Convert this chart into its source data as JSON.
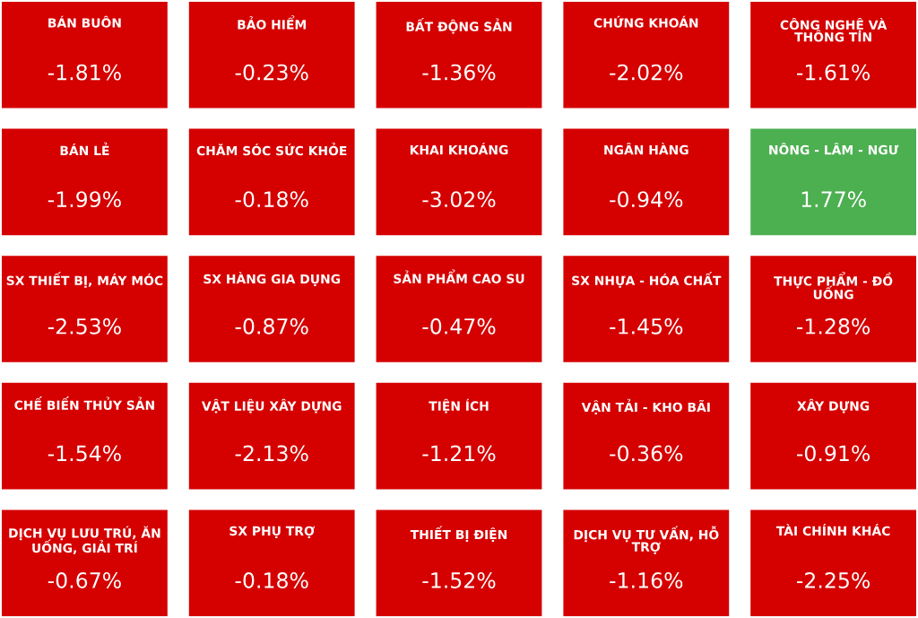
{
  "chart_data": {
    "type": "other",
    "categories": [
      "BÁN BUÔN",
      "BẢO HIỂM",
      "BẤT ĐỘNG SẢN",
      "CHỨNG KHOÁN",
      "CÔNG NGHỆ VÀ THÔNG TIN",
      "BÁN LẺ",
      "CHĂM SÓC SỨC KHỎE",
      "KHAI KHOÁNG",
      "NGÂN HÀNG",
      "NÔNG - LÂM - NGƯ",
      "SX THIẾT BỊ, MÁY MÓC",
      "SX HÀNG GIA DỤNG",
      "SẢN PHẨM CAO SU",
      "SX NHỰA - HÓA CHẤT",
      "THỰC PHẨM - ĐỒ UỐNG",
      "CHẾ BIẾN THỦY SẢN",
      "VẬT LIỆU XÂY DỰNG",
      "TIỆN ÍCH",
      "VẬN TẢI - KHO BÃI",
      "XÂY DỰNG",
      "DỊCH VỤ LƯU TRÚ, ĂN UỐNG, GIẢI TRÍ",
      "SX PHỤ TRỢ",
      "THIẾT BỊ ĐIỆN",
      "DỊCH VỤ TƯ VẤN, HỖ TRỢ",
      "TÀI CHÍNH KHÁC"
    ],
    "values": [
      -1.81,
      -0.23,
      -1.36,
      -2.02,
      -1.61,
      -1.99,
      -0.18,
      -3.02,
      -0.94,
      1.77,
      -2.53,
      -0.87,
      -0.47,
      -1.45,
      -1.28,
      -1.54,
      -2.13,
      -1.21,
      -0.36,
      -0.91,
      -0.67,
      -0.18,
      -1.52,
      -1.16,
      -2.25
    ],
    "value_labels": [
      "-1.81%",
      "-0.23%",
      "-1.36%",
      "-2.02%",
      "-1.61%",
      "-1.99%",
      "-0.18%",
      "-3.02%",
      "-0.94%",
      "1.77%",
      "-2.53%",
      "-0.87%",
      "-0.47%",
      "-1.45%",
      "-1.28%",
      "-1.54%",
      "-2.13%",
      "-1.21%",
      "-0.36%",
      "-0.91%",
      "-0.67%",
      "-0.18%",
      "-1.52%",
      "-1.16%",
      "-2.25%"
    ],
    "colors": [
      "#d50000",
      "#d50000",
      "#d50000",
      "#d50000",
      "#d50000",
      "#d50000",
      "#d50000",
      "#d50000",
      "#d50000",
      "#4caf50",
      "#d50000",
      "#d50000",
      "#d50000",
      "#d50000",
      "#d50000",
      "#d50000",
      "#d50000",
      "#d50000",
      "#d50000",
      "#d50000",
      "#d50000",
      "#d50000",
      "#d50000",
      "#d50000",
      "#d50000"
    ]
  }
}
